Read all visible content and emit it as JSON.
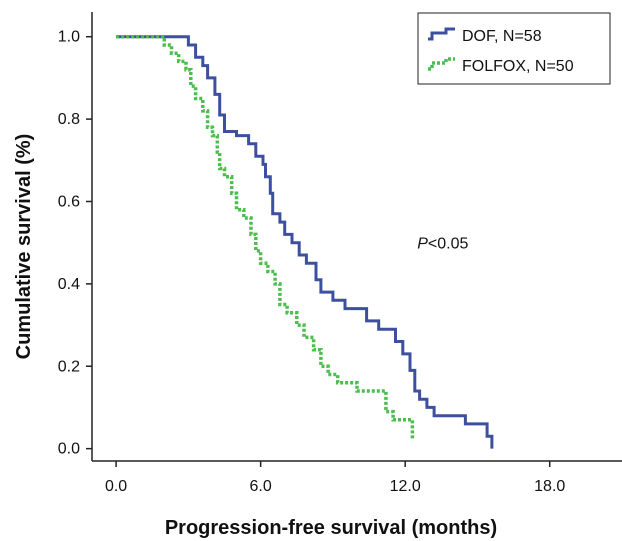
{
  "chart_data": {
    "type": "line",
    "subtype": "kaplan-meier step",
    "xlabel": "Progression-free survival (months)",
    "ylabel": "Cumulative survival (%)",
    "xlim": [
      -1.0,
      21.0
    ],
    "ylim": [
      -0.03,
      1.06
    ],
    "x_ticks": [
      0.0,
      6.0,
      12.0,
      18.0
    ],
    "x_tick_labels": [
      "0.0",
      "6.0",
      "12.0",
      "18.0"
    ],
    "y_ticks": [
      0.0,
      0.2,
      0.4,
      0.6,
      0.8,
      1.0
    ],
    "y_tick_labels": [
      "0.0",
      "0.2",
      "0.4",
      "0.6",
      "0.8",
      "1.0"
    ],
    "legend_position": "top-right",
    "annotation": {
      "italic": "P",
      "rest": "<0.05",
      "x": 12.5,
      "y": 0.5
    },
    "series": [
      {
        "name": "DOF, N=58",
        "color": "#3d50a0",
        "style": "solid",
        "points": [
          [
            0.0,
            1.0
          ],
          [
            3.0,
            1.0
          ],
          [
            3.0,
            0.98
          ],
          [
            3.3,
            0.98
          ],
          [
            3.3,
            0.95
          ],
          [
            3.6,
            0.95
          ],
          [
            3.6,
            0.93
          ],
          [
            3.8,
            0.93
          ],
          [
            3.8,
            0.9
          ],
          [
            4.1,
            0.9
          ],
          [
            4.1,
            0.86
          ],
          [
            4.3,
            0.86
          ],
          [
            4.3,
            0.81
          ],
          [
            4.5,
            0.81
          ],
          [
            4.5,
            0.77
          ],
          [
            5.0,
            0.77
          ],
          [
            5.0,
            0.76
          ],
          [
            5.5,
            0.76
          ],
          [
            5.5,
            0.74
          ],
          [
            5.8,
            0.74
          ],
          [
            5.8,
            0.71
          ],
          [
            6.1,
            0.71
          ],
          [
            6.1,
            0.69
          ],
          [
            6.2,
            0.69
          ],
          [
            6.2,
            0.66
          ],
          [
            6.4,
            0.66
          ],
          [
            6.4,
            0.62
          ],
          [
            6.5,
            0.62
          ],
          [
            6.5,
            0.57
          ],
          [
            6.8,
            0.57
          ],
          [
            6.8,
            0.55
          ],
          [
            7.0,
            0.55
          ],
          [
            7.0,
            0.52
          ],
          [
            7.3,
            0.52
          ],
          [
            7.3,
            0.5
          ],
          [
            7.6,
            0.5
          ],
          [
            7.6,
            0.47
          ],
          [
            7.9,
            0.47
          ],
          [
            7.9,
            0.45
          ],
          [
            8.3,
            0.45
          ],
          [
            8.3,
            0.41
          ],
          [
            8.5,
            0.41
          ],
          [
            8.5,
            0.38
          ],
          [
            9.0,
            0.38
          ],
          [
            9.0,
            0.36
          ],
          [
            9.5,
            0.36
          ],
          [
            9.5,
            0.34
          ],
          [
            10.4,
            0.34
          ],
          [
            10.4,
            0.31
          ],
          [
            10.9,
            0.31
          ],
          [
            10.9,
            0.29
          ],
          [
            11.6,
            0.29
          ],
          [
            11.6,
            0.26
          ],
          [
            11.9,
            0.26
          ],
          [
            11.9,
            0.23
          ],
          [
            12.2,
            0.23
          ],
          [
            12.2,
            0.19
          ],
          [
            12.4,
            0.19
          ],
          [
            12.4,
            0.14
          ],
          [
            12.6,
            0.14
          ],
          [
            12.6,
            0.12
          ],
          [
            12.9,
            0.12
          ],
          [
            12.9,
            0.1
          ],
          [
            13.2,
            0.1
          ],
          [
            13.2,
            0.08
          ],
          [
            14.5,
            0.08
          ],
          [
            14.5,
            0.06
          ],
          [
            15.4,
            0.06
          ],
          [
            15.4,
            0.03
          ],
          [
            15.6,
            0.03
          ],
          [
            15.6,
            0.0
          ]
        ]
      },
      {
        "name": "FOLFOX, N=50",
        "color": "#4cbe4c",
        "style": "dotted",
        "points": [
          [
            0.0,
            1.0
          ],
          [
            2.0,
            1.0
          ],
          [
            2.0,
            0.98
          ],
          [
            2.3,
            0.98
          ],
          [
            2.3,
            0.96
          ],
          [
            2.6,
            0.96
          ],
          [
            2.6,
            0.94
          ],
          [
            2.9,
            0.94
          ],
          [
            2.9,
            0.92
          ],
          [
            3.1,
            0.92
          ],
          [
            3.1,
            0.88
          ],
          [
            3.3,
            0.88
          ],
          [
            3.3,
            0.85
          ],
          [
            3.6,
            0.85
          ],
          [
            3.6,
            0.82
          ],
          [
            3.8,
            0.82
          ],
          [
            3.8,
            0.78
          ],
          [
            4.0,
            0.78
          ],
          [
            4.0,
            0.76
          ],
          [
            4.2,
            0.76
          ],
          [
            4.2,
            0.72
          ],
          [
            4.3,
            0.72
          ],
          [
            4.3,
            0.68
          ],
          [
            4.5,
            0.68
          ],
          [
            4.5,
            0.66
          ],
          [
            4.8,
            0.66
          ],
          [
            4.8,
            0.62
          ],
          [
            5.0,
            0.62
          ],
          [
            5.0,
            0.58
          ],
          [
            5.3,
            0.58
          ],
          [
            5.3,
            0.56
          ],
          [
            5.6,
            0.56
          ],
          [
            5.6,
            0.52
          ],
          [
            5.8,
            0.52
          ],
          [
            5.8,
            0.48
          ],
          [
            6.0,
            0.48
          ],
          [
            6.0,
            0.45
          ],
          [
            6.3,
            0.45
          ],
          [
            6.3,
            0.43
          ],
          [
            6.6,
            0.43
          ],
          [
            6.6,
            0.4
          ],
          [
            6.8,
            0.4
          ],
          [
            6.8,
            0.35
          ],
          [
            7.1,
            0.35
          ],
          [
            7.1,
            0.33
          ],
          [
            7.5,
            0.33
          ],
          [
            7.5,
            0.3
          ],
          [
            7.8,
            0.3
          ],
          [
            7.8,
            0.27
          ],
          [
            8.2,
            0.27
          ],
          [
            8.2,
            0.24
          ],
          [
            8.5,
            0.24
          ],
          [
            8.5,
            0.2
          ],
          [
            8.8,
            0.2
          ],
          [
            8.8,
            0.18
          ],
          [
            9.2,
            0.18
          ],
          [
            9.2,
            0.16
          ],
          [
            10.0,
            0.16
          ],
          [
            10.0,
            0.14
          ],
          [
            11.2,
            0.14
          ],
          [
            11.2,
            0.09
          ],
          [
            11.5,
            0.09
          ],
          [
            11.5,
            0.07
          ],
          [
            12.3,
            0.07
          ],
          [
            12.3,
            0.02
          ],
          [
            12.3,
            0.02
          ]
        ]
      }
    ]
  }
}
